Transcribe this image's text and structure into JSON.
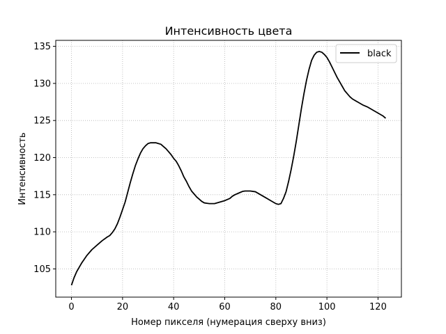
{
  "chart_data": {
    "type": "line",
    "title": "Интенсивность цвета",
    "xlabel": "Номер пикселя (нумерация сверху вниз)",
    "ylabel": "Интенсивность",
    "xlim": [
      -6.15,
      129.15
    ],
    "ylim": [
      101.2,
      135.8
    ],
    "xticks": [
      0,
      20,
      40,
      60,
      80,
      100,
      120
    ],
    "yticks": [
      105,
      110,
      115,
      120,
      125,
      130,
      135
    ],
    "grid": true,
    "legend_position": "top-right",
    "series": [
      {
        "name": "black",
        "color": "#000000",
        "points": [
          [
            0,
            102.8
          ],
          [
            1,
            103.8
          ],
          [
            2,
            104.6
          ],
          [
            3,
            105.2
          ],
          [
            4,
            105.8
          ],
          [
            5,
            106.3
          ],
          [
            6,
            106.8
          ],
          [
            7,
            107.2
          ],
          [
            8,
            107.6
          ],
          [
            10,
            108.2
          ],
          [
            12,
            108.8
          ],
          [
            14,
            109.3
          ],
          [
            15,
            109.5
          ],
          [
            16,
            109.9
          ],
          [
            17,
            110.4
          ],
          [
            18,
            111.1
          ],
          [
            19,
            112.0
          ],
          [
            20,
            113.0
          ],
          [
            21,
            114.0
          ],
          [
            22,
            115.3
          ],
          [
            23,
            116.6
          ],
          [
            24,
            117.8
          ],
          [
            25,
            118.9
          ],
          [
            26,
            119.8
          ],
          [
            27,
            120.6
          ],
          [
            28,
            121.2
          ],
          [
            29,
            121.6
          ],
          [
            30,
            121.9
          ],
          [
            31,
            122.0
          ],
          [
            32,
            122.0
          ],
          [
            33,
            122.0
          ],
          [
            34,
            121.9
          ],
          [
            35,
            121.8
          ],
          [
            36,
            121.5
          ],
          [
            37,
            121.2
          ],
          [
            38,
            120.8
          ],
          [
            39,
            120.4
          ],
          [
            40,
            119.9
          ],
          [
            41,
            119.5
          ],
          [
            42,
            118.9
          ],
          [
            43,
            118.2
          ],
          [
            44,
            117.4
          ],
          [
            45,
            116.8
          ],
          [
            46,
            116.1
          ],
          [
            47,
            115.5
          ],
          [
            48,
            115.1
          ],
          [
            49,
            114.7
          ],
          [
            50,
            114.4
          ],
          [
            51,
            114.1
          ],
          [
            52,
            113.9
          ],
          [
            53,
            113.85
          ],
          [
            54,
            113.8
          ],
          [
            56,
            113.8
          ],
          [
            58,
            114.0
          ],
          [
            60,
            114.2
          ],
          [
            62,
            114.5
          ],
          [
            63,
            114.8
          ],
          [
            64,
            115.0
          ],
          [
            66,
            115.3
          ],
          [
            67,
            115.45
          ],
          [
            68,
            115.5
          ],
          [
            70,
            115.5
          ],
          [
            72,
            115.4
          ],
          [
            74,
            115.0
          ],
          [
            76,
            114.6
          ],
          [
            78,
            114.2
          ],
          [
            80,
            113.8
          ],
          [
            81,
            113.7
          ],
          [
            82,
            113.8
          ],
          [
            83,
            114.5
          ],
          [
            84,
            115.4
          ],
          [
            85,
            116.8
          ],
          [
            86,
            118.4
          ],
          [
            87,
            120.2
          ],
          [
            88,
            122.2
          ],
          [
            89,
            124.4
          ],
          [
            90,
            126.6
          ],
          [
            91,
            128.6
          ],
          [
            92,
            130.4
          ],
          [
            93,
            131.9
          ],
          [
            94,
            133.1
          ],
          [
            95,
            133.8
          ],
          [
            96,
            134.2
          ],
          [
            97,
            134.3
          ],
          [
            98,
            134.2
          ],
          [
            99,
            133.9
          ],
          [
            100,
            133.5
          ],
          [
            101,
            132.9
          ],
          [
            102,
            132.2
          ],
          [
            103,
            131.5
          ],
          [
            104,
            130.8
          ],
          [
            105,
            130.2
          ],
          [
            106,
            129.6
          ],
          [
            107,
            129.0
          ],
          [
            108,
            128.6
          ],
          [
            109,
            128.2
          ],
          [
            110,
            127.9
          ],
          [
            112,
            127.5
          ],
          [
            114,
            127.1
          ],
          [
            116,
            126.8
          ],
          [
            118,
            126.4
          ],
          [
            120,
            126.0
          ],
          [
            122,
            125.6
          ],
          [
            123,
            125.3
          ]
        ]
      }
    ]
  }
}
